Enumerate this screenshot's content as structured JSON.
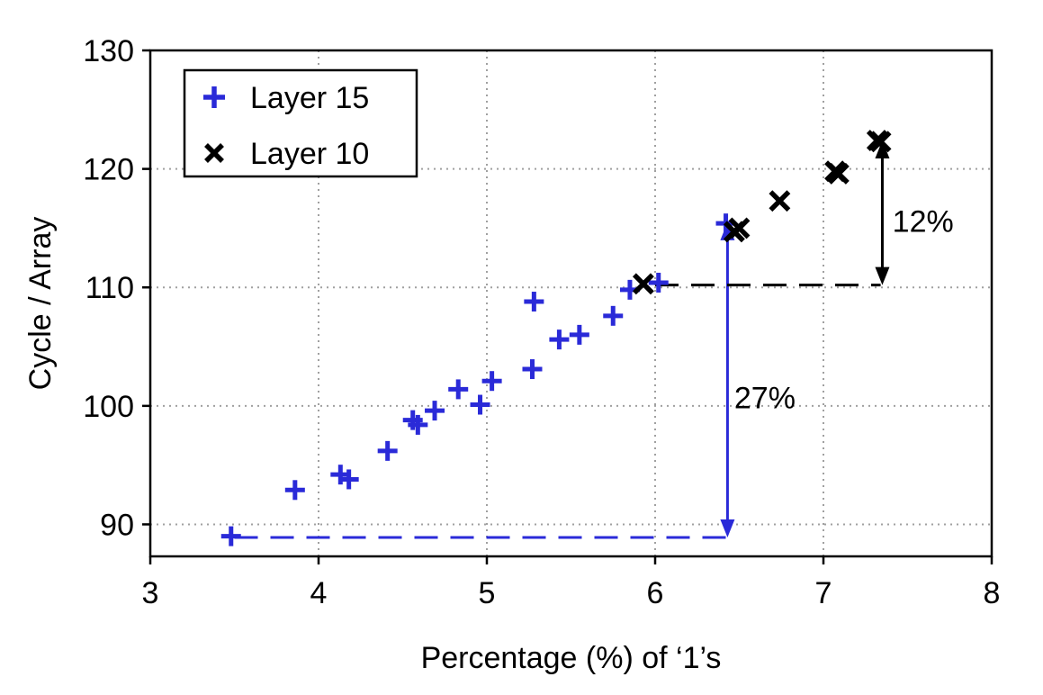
{
  "chart_data": {
    "type": "scatter",
    "xlabel": "Percentage (%) of ‘1’s",
    "ylabel": "Cycle / Array",
    "xlim": [
      3,
      8
    ],
    "ylim": [
      87.3,
      130
    ],
    "xticks": [
      3,
      4,
      5,
      6,
      7,
      8
    ],
    "yticks": [
      90,
      100,
      110,
      120,
      130
    ],
    "grid": true,
    "legend_position": "top-left",
    "series": [
      {
        "name": "Layer 15",
        "marker": "plus",
        "color": "#2a2ad8",
        "x": [
          3.48,
          3.86,
          4.13,
          4.18,
          4.41,
          4.56,
          4.59,
          4.69,
          4.83,
          4.96,
          5.03,
          5.27,
          5.28,
          5.43,
          5.55,
          5.75,
          5.85,
          6.02,
          6.42
        ],
        "y": [
          89.0,
          92.9,
          94.2,
          93.8,
          96.2,
          98.8,
          98.4,
          99.6,
          101.4,
          100.1,
          102.1,
          103.1,
          108.8,
          105.6,
          106.0,
          107.6,
          109.8,
          110.4,
          115.4
        ]
      },
      {
        "name": "Layer 10",
        "marker": "x",
        "color": "#000000",
        "x": [
          5.93,
          6.47,
          6.5,
          6.74,
          7.07,
          7.09,
          7.32,
          7.34
        ],
        "y": [
          110.3,
          114.7,
          115.0,
          117.3,
          119.8,
          119.6,
          122.4,
          122.3
        ]
      }
    ],
    "annotations": [
      {
        "text": "27%",
        "color": "#2a2ad8",
        "dashed_from": [
          3.5,
          88.9
        ],
        "dashed_to": [
          6.43,
          88.9
        ],
        "arrow_x": 6.43,
        "arrow_y_range": [
          88.9,
          115.5
        ],
        "label_pos": [
          6.47,
          100.7
        ]
      },
      {
        "text": "12%",
        "color": "#000000",
        "dashed_from": [
          6.0,
          110.2
        ],
        "dashed_to": [
          7.34,
          110.2
        ],
        "arrow_x": 7.35,
        "arrow_y_range": [
          110.2,
          122.4
        ],
        "label_pos": [
          7.41,
          115.6
        ]
      }
    ]
  }
}
